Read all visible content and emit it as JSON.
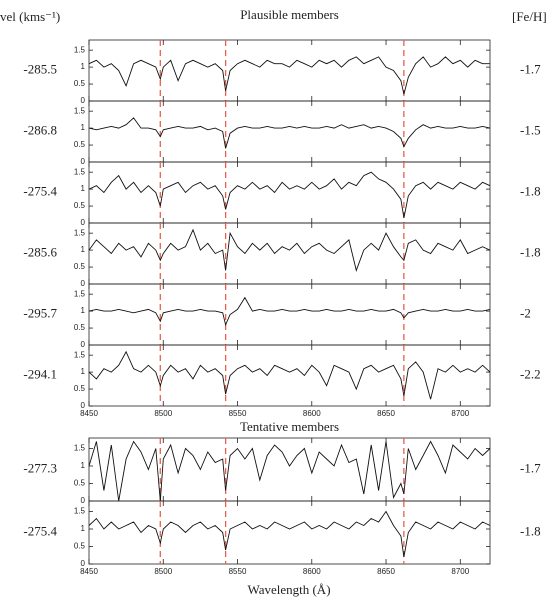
{
  "chart_data": {
    "type": "line",
    "velocity_header": "vel (kms⁻¹)",
    "feh_header": "[Fe/H]",
    "xlabel": "Wavelength (Å)",
    "xlim": [
      8450,
      8720
    ],
    "xticks": [
      8450,
      8500,
      8550,
      8600,
      8650,
      8700
    ],
    "ylim": [
      0,
      1.8
    ],
    "yticks": [
      0,
      0.5,
      1,
      1.5
    ],
    "line_color": "#111111",
    "marker_color": "#e8604c",
    "markers": [
      8498,
      8542,
      8662
    ],
    "x": [
      8450,
      8455,
      8460,
      8465,
      8470,
      8475,
      8480,
      8485,
      8490,
      8495,
      8498,
      8500,
      8505,
      8510,
      8515,
      8520,
      8525,
      8530,
      8535,
      8540,
      8542,
      8545,
      8550,
      8555,
      8560,
      8565,
      8570,
      8575,
      8580,
      8585,
      8590,
      8595,
      8600,
      8605,
      8610,
      8615,
      8620,
      8625,
      8630,
      8635,
      8640,
      8645,
      8650,
      8655,
      8660,
      8662,
      8665,
      8670,
      8675,
      8680,
      8685,
      8690,
      8695,
      8700,
      8705,
      8710,
      8715,
      8720
    ],
    "groups": [
      {
        "title": "Plausible members",
        "panels": [
          {
            "velocity": -285.5,
            "feh": -1.7,
            "values": [
              1.1,
              1.2,
              1.0,
              1.1,
              0.9,
              0.45,
              1.1,
              1.2,
              1.1,
              1.0,
              0.65,
              1.0,
              1.2,
              0.6,
              1.1,
              1.2,
              1.1,
              1.0,
              1.1,
              0.9,
              0.3,
              0.9,
              1.1,
              1.2,
              1.1,
              1.0,
              1.2,
              1.1,
              1.1,
              1.0,
              1.2,
              1.1,
              1.0,
              1.2,
              1.1,
              1.2,
              1.0,
              1.2,
              1.3,
              1.1,
              1.2,
              1.3,
              1.0,
              0.9,
              0.6,
              0.2,
              0.7,
              1.1,
              1.3,
              1.0,
              1.1,
              1.3,
              1.1,
              1.2,
              1.0,
              1.2,
              1.1,
              1.1
            ]
          },
          {
            "velocity": -286.8,
            "feh": -1.5,
            "values": [
              1.0,
              0.95,
              1.0,
              1.05,
              1.0,
              1.1,
              1.3,
              1.0,
              1.0,
              0.95,
              0.75,
              0.95,
              1.0,
              1.05,
              1.0,
              1.0,
              1.05,
              0.95,
              1.0,
              0.9,
              0.4,
              0.85,
              1.0,
              1.05,
              1.0,
              1.0,
              1.05,
              1.0,
              1.0,
              1.05,
              1.0,
              1.05,
              1.0,
              1.0,
              1.05,
              1.0,
              1.1,
              1.0,
              1.05,
              1.1,
              1.0,
              1.05,
              1.0,
              0.9,
              0.7,
              0.45,
              0.7,
              0.95,
              1.1,
              1.0,
              1.05,
              1.0,
              1.0,
              1.05,
              1.0,
              1.0,
              1.05,
              1.0
            ]
          },
          {
            "velocity": -275.4,
            "feh": -1.8,
            "values": [
              1.0,
              1.1,
              0.9,
              1.2,
              1.4,
              1.0,
              1.2,
              0.9,
              1.1,
              0.9,
              0.5,
              1.0,
              1.1,
              1.2,
              0.9,
              1.1,
              1.2,
              1.0,
              1.1,
              0.8,
              0.4,
              0.9,
              1.1,
              1.0,
              1.2,
              1.0,
              1.1,
              0.9,
              1.2,
              1.0,
              1.1,
              1.0,
              1.2,
              1.0,
              1.1,
              1.3,
              1.0,
              1.2,
              1.1,
              1.4,
              1.5,
              1.3,
              1.2,
              1.0,
              0.7,
              0.15,
              0.8,
              1.1,
              1.2,
              1.0,
              1.2,
              1.1,
              1.0,
              1.2,
              1.1,
              1.0,
              1.2,
              1.1
            ]
          },
          {
            "velocity": -285.6,
            "feh": -1.8,
            "values": [
              1.0,
              1.3,
              1.1,
              0.9,
              1.2,
              1.0,
              1.1,
              0.8,
              1.2,
              1.0,
              0.7,
              0.9,
              1.2,
              1.0,
              1.1,
              1.6,
              1.0,
              1.2,
              0.9,
              1.0,
              0.4,
              1.5,
              1.1,
              0.9,
              1.2,
              1.0,
              1.2,
              0.9,
              1.1,
              1.0,
              1.2,
              0.9,
              1.1,
              1.2,
              1.0,
              0.9,
              1.1,
              1.3,
              0.4,
              1.0,
              1.2,
              1.0,
              1.5,
              1.1,
              0.8,
              0.7,
              1.2,
              1.3,
              1.0,
              0.9,
              1.2,
              1.1,
              1.0,
              1.3,
              0.9,
              1.0,
              1.1,
              1.0
            ]
          },
          {
            "velocity": -295.7,
            "feh": -2.0,
            "values": [
              1.0,
              1.05,
              1.0,
              1.0,
              1.05,
              1.0,
              0.95,
              1.0,
              1.05,
              0.95,
              0.7,
              0.95,
              1.0,
              1.05,
              1.0,
              1.0,
              1.05,
              1.0,
              1.0,
              0.95,
              0.6,
              0.9,
              1.05,
              1.4,
              1.0,
              1.05,
              1.0,
              1.0,
              1.05,
              1.0,
              1.0,
              1.05,
              1.0,
              1.0,
              1.05,
              1.0,
              1.0,
              1.05,
              1.0,
              1.0,
              1.05,
              1.0,
              1.0,
              1.05,
              0.95,
              0.8,
              0.95,
              1.0,
              1.05,
              1.0,
              1.0,
              1.05,
              1.0,
              1.0,
              1.05,
              1.0,
              1.0,
              1.05
            ]
          },
          {
            "velocity": -294.1,
            "feh": -2.2,
            "values": [
              1.0,
              0.8,
              1.1,
              1.0,
              1.2,
              1.6,
              1.1,
              1.0,
              1.2,
              1.0,
              0.6,
              0.9,
              1.2,
              1.0,
              1.1,
              0.8,
              1.2,
              1.0,
              1.1,
              0.9,
              0.35,
              0.9,
              1.1,
              1.2,
              1.0,
              1.1,
              0.9,
              1.2,
              1.1,
              1.0,
              1.1,
              0.9,
              1.2,
              1.0,
              0.6,
              1.2,
              1.1,
              1.0,
              0.5,
              1.1,
              1.2,
              1.0,
              1.1,
              1.2,
              0.8,
              0.3,
              1.1,
              1.3,
              1.0,
              0.2,
              1.1,
              1.0,
              1.2,
              1.0,
              1.1,
              1.0,
              1.2,
              1.0
            ]
          }
        ]
      },
      {
        "title": "Tentative members",
        "panels": [
          {
            "velocity": -277.3,
            "feh": -1.7,
            "values": [
              1.0,
              1.7,
              0.3,
              1.6,
              0.0,
              1.2,
              1.7,
              1.4,
              0.9,
              1.5,
              0.0,
              1.2,
              1.6,
              0.8,
              1.5,
              1.3,
              0.9,
              1.4,
              1.1,
              1.2,
              0.3,
              1.3,
              1.5,
              1.2,
              1.5,
              0.6,
              1.3,
              1.6,
              1.4,
              1.0,
              1.3,
              1.5,
              0.8,
              1.4,
              1.2,
              1.0,
              1.6,
              1.1,
              1.2,
              0.2,
              1.6,
              0.3,
              1.7,
              0.1,
              0.5,
              0.2,
              1.5,
              0.9,
              1.3,
              1.7,
              1.3,
              0.8,
              1.6,
              1.4,
              1.2,
              1.5,
              1.3,
              1.5
            ]
          },
          {
            "velocity": -275.4,
            "feh": -1.8,
            "values": [
              1.1,
              1.3,
              1.0,
              1.2,
              1.0,
              1.1,
              1.2,
              0.9,
              1.1,
              1.0,
              0.6,
              1.0,
              1.2,
              1.1,
              0.9,
              1.1,
              1.2,
              1.0,
              1.1,
              0.9,
              0.4,
              1.0,
              1.1,
              1.2,
              1.0,
              1.1,
              1.0,
              1.2,
              1.1,
              1.0,
              1.1,
              1.2,
              1.0,
              1.1,
              1.0,
              1.2,
              1.1,
              1.0,
              1.2,
              1.1,
              1.3,
              1.2,
              1.5,
              1.1,
              0.8,
              0.2,
              0.9,
              1.2,
              1.1,
              1.0,
              1.2,
              1.1,
              1.0,
              1.2,
              1.1,
              1.0,
              1.2,
              1.1
            ]
          }
        ]
      }
    ]
  }
}
